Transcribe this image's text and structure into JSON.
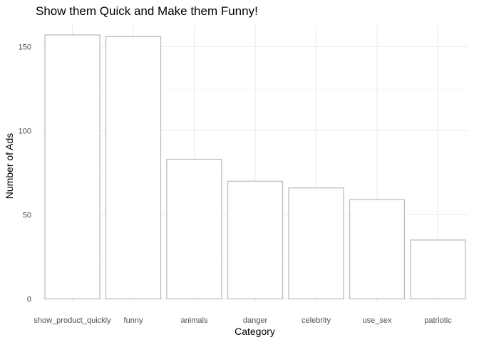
{
  "chart_data": {
    "type": "bar",
    "title": "Show them Quick and Make them Funny!",
    "xlabel": "Category",
    "ylabel": "Number of Ads",
    "categories": [
      "show_product_quickly",
      "funny",
      "animals",
      "danger",
      "celebrity",
      "use_sex",
      "patriotic"
    ],
    "values": [
      157,
      156,
      83,
      70,
      66,
      59,
      35
    ],
    "ylim": [
      0,
      165
    ],
    "yticks": [
      0,
      50,
      100,
      150
    ],
    "grid": true,
    "bar_fill": "#ffffff",
    "bar_outline": "#bdbdbd",
    "grid_color": "#ebebeb"
  }
}
